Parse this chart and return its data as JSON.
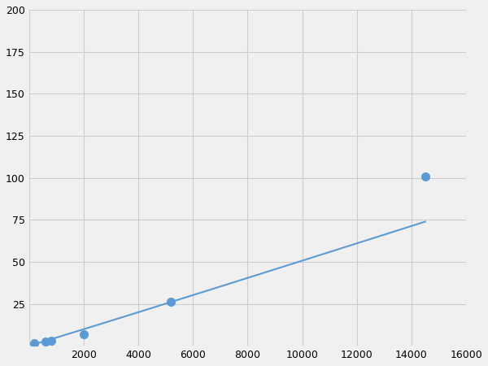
{
  "x_points": [
    200,
    600,
    800,
    2000,
    5200,
    14500
  ],
  "y_points": [
    1.5,
    2.5,
    3.0,
    7.0,
    26.0,
    101.0
  ],
  "line_color": "#5b9bd5",
  "marker_color": "#5b9bd5",
  "marker_size": 7,
  "xlim": [
    0,
    16000
  ],
  "ylim": [
    0,
    200
  ],
  "xticks": [
    0,
    2000,
    4000,
    6000,
    8000,
    10000,
    12000,
    14000,
    16000
  ],
  "yticks": [
    0,
    25,
    50,
    75,
    100,
    125,
    150,
    175,
    200
  ],
  "grid_color": "#cccccc",
  "fig_background": "#f0f0f0"
}
